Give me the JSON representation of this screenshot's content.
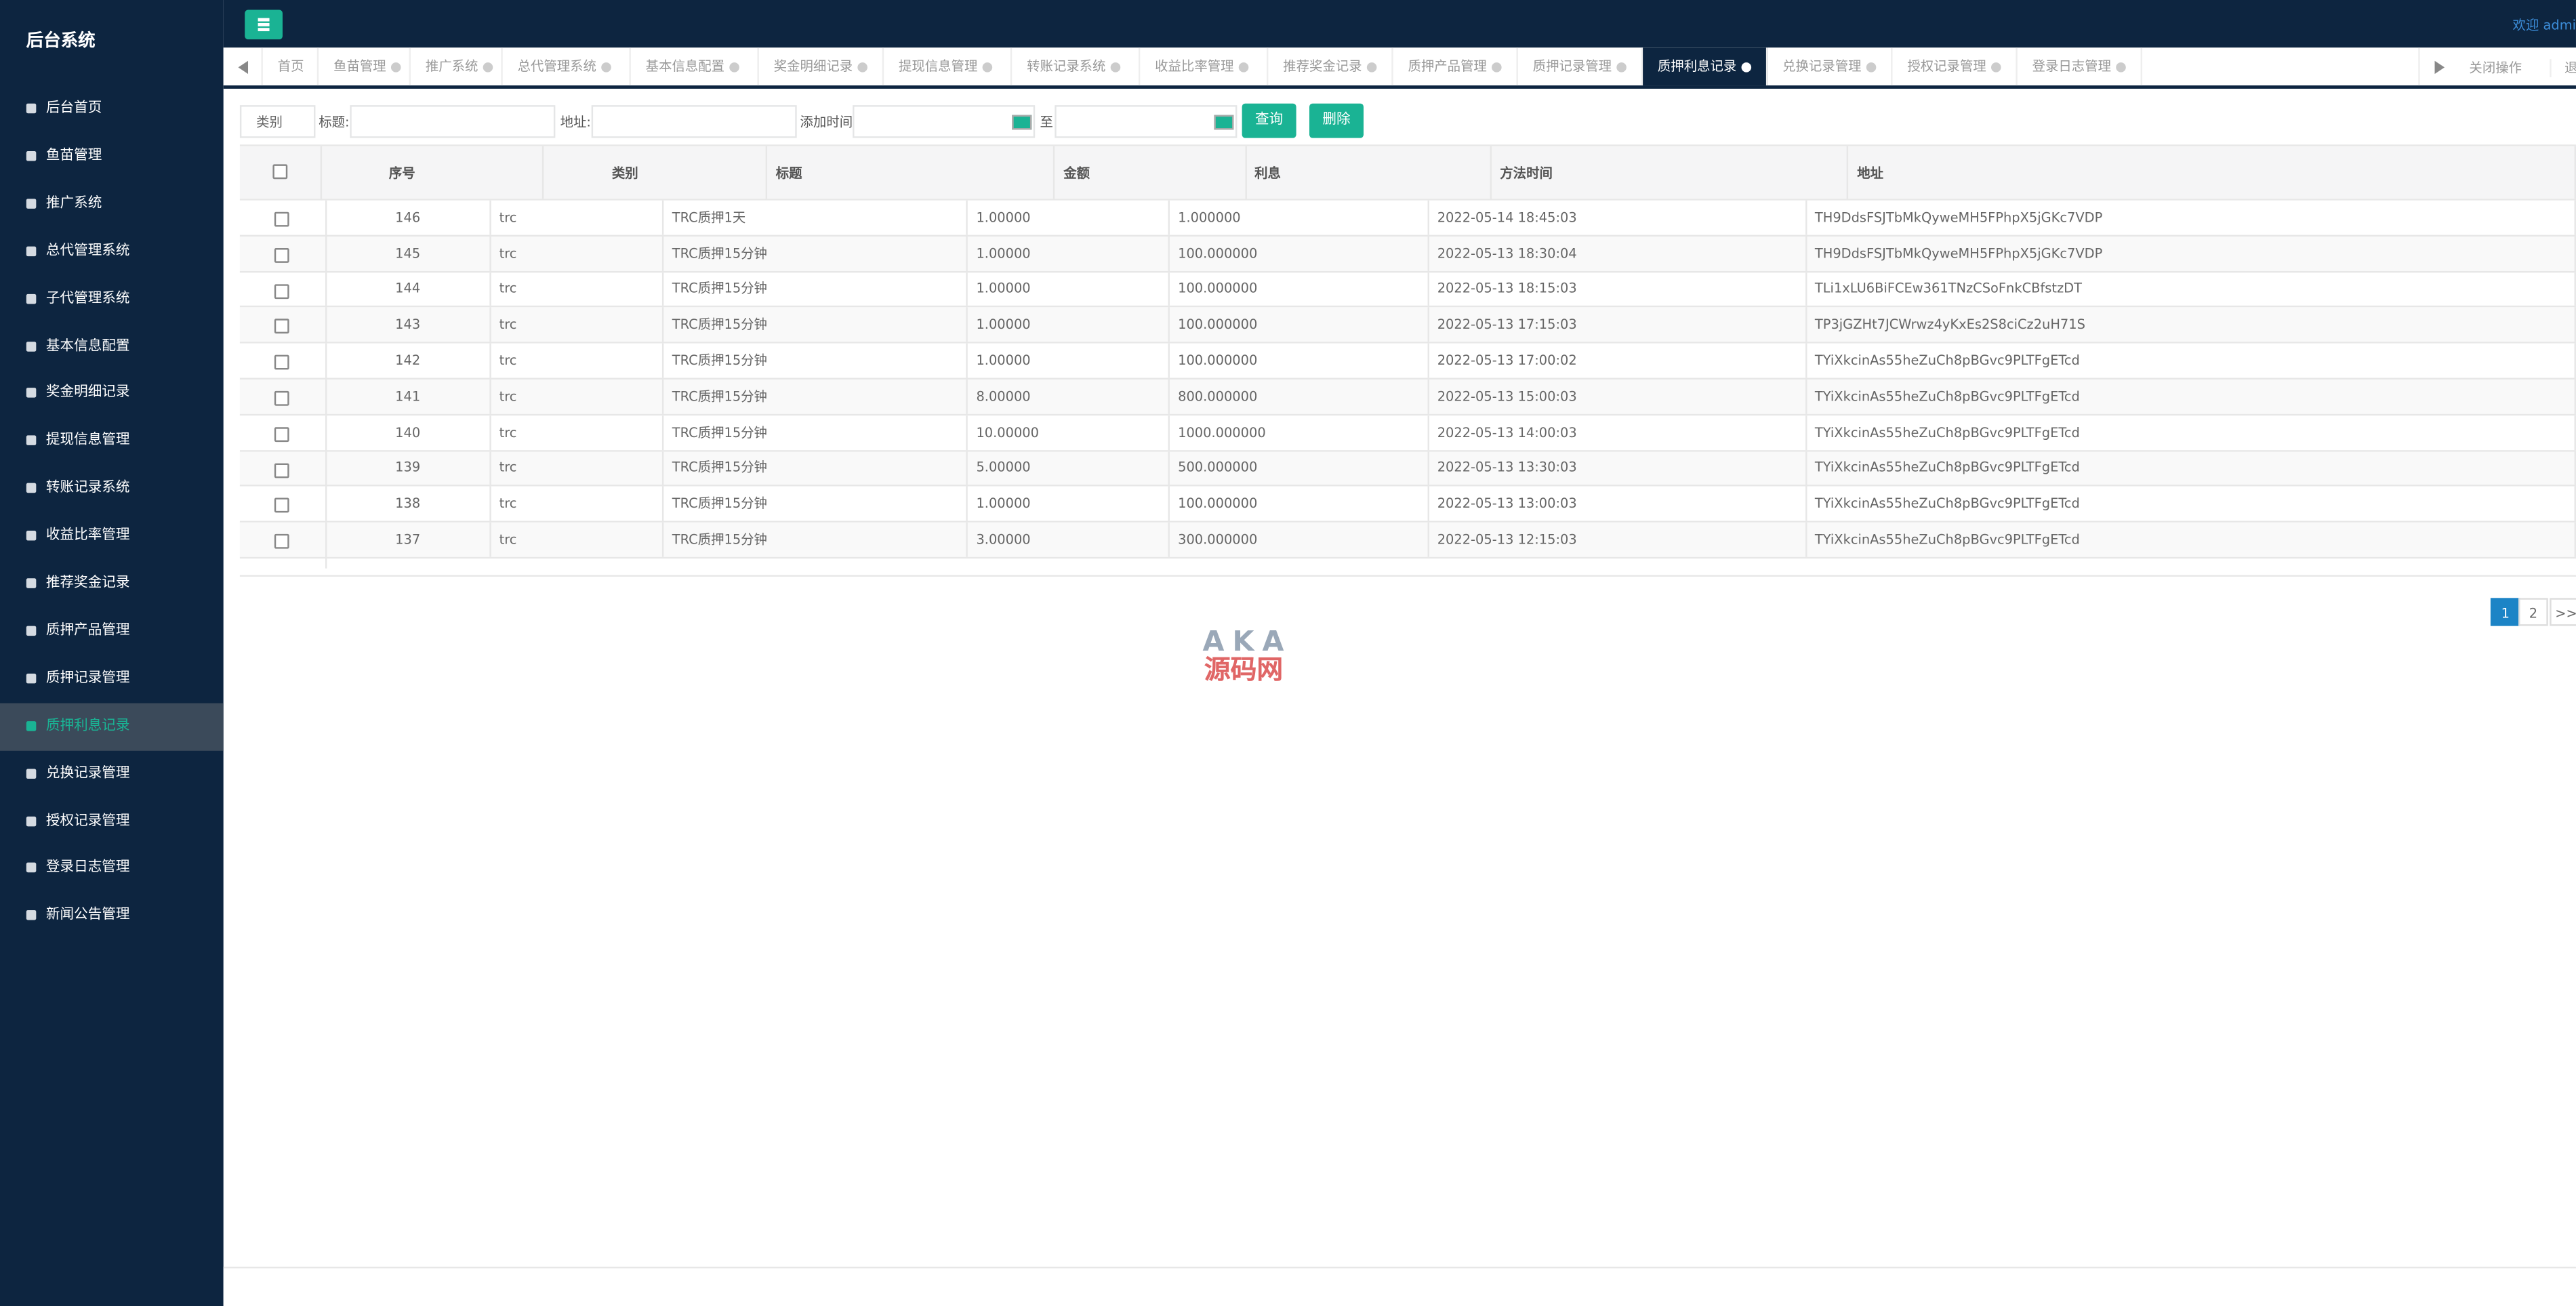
{
  "sidebar": {
    "title": "后台系统",
    "menu": [
      "后台首页",
      "鱼苗管理",
      "推广系统",
      "总代管理系统",
      "子代管理系统",
      "基本信息配置",
      "奖金明细记录",
      "提现信息管理",
      "转账记录系统",
      "收益比率管理",
      "推荐奖金记录",
      "质押产品管理",
      "质押记录管理",
      "质押利息记录",
      "兑换记录管理",
      "授权记录管理",
      "登录日志管理",
      "新闻公告管理"
    ],
    "active_index": 13
  },
  "header": {
    "welcome": "欢迎 admi"
  },
  "tabs": {
    "items": [
      "首页",
      "鱼苗管理",
      "推广系统",
      "总代管理系统",
      "基本信息配置",
      "奖金明细记录",
      "提现信息管理",
      "转账记录系统",
      "收益比率管理",
      "推荐奖金记录",
      "质押产品管理",
      "质押记录管理",
      "质押利息记录",
      "兑换记录管理",
      "授权记录管理",
      "登录日志管理"
    ],
    "active_index": 12,
    "close_menu": "关闭操作",
    "logout": "退"
  },
  "filters": {
    "select": "类别",
    "title_label": "标题:",
    "address_label": "地址:",
    "time_label": "添加时间",
    "to_label": "至",
    "query": "查询",
    "delete": "删除"
  },
  "table": {
    "columns": [
      "序号",
      "类别",
      "标题",
      "金额",
      "利息",
      "方法时间",
      "地址"
    ],
    "rows": [
      [
        "146",
        "trc",
        "TRC质押1天",
        "1.00000",
        "1.000000",
        "2022-05-14 18:45:03",
        "TH9DdsFSJTbMkQyweMH5FPhpX5jGKc7VDP"
      ],
      [
        "145",
        "trc",
        "TRC质押15分钟",
        "1.00000",
        "100.000000",
        "2022-05-13 18:30:04",
        "TH9DdsFSJTbMkQyweMH5FPhpX5jGKc7VDP"
      ],
      [
        "144",
        "trc",
        "TRC质押15分钟",
        "1.00000",
        "100.000000",
        "2022-05-13 18:15:03",
        "TLi1xLU6BiFCEw361TNzCSoFnkCBfstzDT"
      ],
      [
        "143",
        "trc",
        "TRC质押15分钟",
        "1.00000",
        "100.000000",
        "2022-05-13 17:15:03",
        "TP3jGZHt7JCWrwz4yKxEs2S8ciCz2uH71S"
      ],
      [
        "142",
        "trc",
        "TRC质押15分钟",
        "1.00000",
        "100.000000",
        "2022-05-13 17:00:02",
        "TYiXkcinAs55heZuCh8pBGvc9PLTFgETcd"
      ],
      [
        "141",
        "trc",
        "TRC质押15分钟",
        "8.00000",
        "800.000000",
        "2022-05-13 15:00:03",
        "TYiXkcinAs55heZuCh8pBGvc9PLTFgETcd"
      ],
      [
        "140",
        "trc",
        "TRC质押15分钟",
        "10.00000",
        "1000.000000",
        "2022-05-13 14:00:03",
        "TYiXkcinAs55heZuCh8pBGvc9PLTFgETcd"
      ],
      [
        "139",
        "trc",
        "TRC质押15分钟",
        "5.00000",
        "500.000000",
        "2022-05-13 13:30:03",
        "TYiXkcinAs55heZuCh8pBGvc9PLTFgETcd"
      ],
      [
        "138",
        "trc",
        "TRC质押15分钟",
        "1.00000",
        "100.000000",
        "2022-05-13 13:00:03",
        "TYiXkcinAs55heZuCh8pBGvc9PLTFgETcd"
      ],
      [
        "137",
        "trc",
        "TRC质押15分钟",
        "3.00000",
        "300.000000",
        "2022-05-13 12:15:03",
        "TYiXkcinAs55heZuCh8pBGvc9PLTFgETcd"
      ]
    ]
  },
  "pagination": {
    "pages": [
      "1",
      "2"
    ],
    "next": ">>",
    "active_index": 0
  },
  "watermark": {
    "top": "AKA",
    "bottom": "源码网"
  }
}
